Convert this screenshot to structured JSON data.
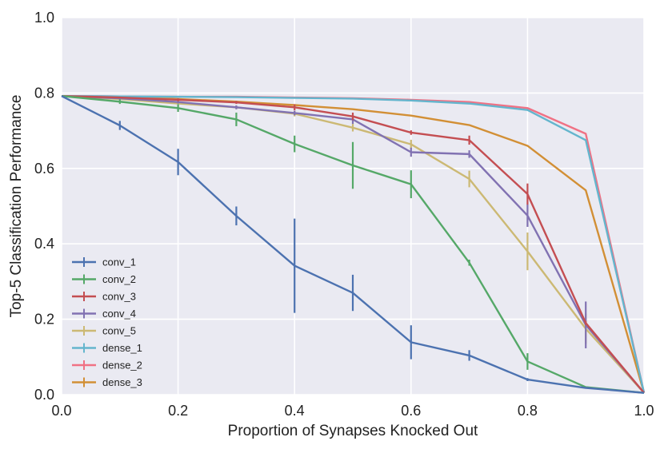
{
  "chart_data": {
    "type": "line",
    "title": "",
    "xlabel": "Proportion of Synapses Knocked Out",
    "ylabel": "Top-5 Classification Performance",
    "xlim": [
      0.0,
      1.0
    ],
    "ylim": [
      0.0,
      1.0
    ],
    "xticks": [
      "0.0",
      "0.2",
      "0.4",
      "0.6",
      "0.8",
      "1.0"
    ],
    "yticks": [
      "0.0",
      "0.2",
      "0.4",
      "0.6",
      "0.8",
      "1.0"
    ],
    "grid": true,
    "legend_position": "bottom-left",
    "x": [
      0.0,
      0.1,
      0.2,
      0.3,
      0.4,
      0.5,
      0.6,
      0.7,
      0.8,
      0.9,
      1.0
    ],
    "series": [
      {
        "name": "conv_1",
        "color": "#4c72b0",
        "values": [
          0.792,
          0.714,
          0.617,
          0.474,
          0.342,
          0.27,
          0.139,
          0.104,
          0.04,
          0.018,
          0.005
        ],
        "errors": [
          0,
          0.012,
          0.035,
          0.025,
          0.125,
          0.048,
          0.045,
          0.014,
          0.004,
          0.002,
          0
        ]
      },
      {
        "name": "conv_2",
        "color": "#55a868",
        "values": [
          0.792,
          0.777,
          0.76,
          0.73,
          0.665,
          0.608,
          0.558,
          0.35,
          0.088,
          0.02,
          0.005
        ],
        "errors": [
          0,
          0.006,
          0.01,
          0.018,
          0.022,
          0.062,
          0.037,
          0.008,
          0.022,
          0.002,
          0
        ]
      },
      {
        "name": "conv_3",
        "color": "#c44e52",
        "values": [
          0.792,
          0.788,
          0.782,
          0.775,
          0.762,
          0.738,
          0.695,
          0.675,
          0.532,
          0.19,
          0.005
        ],
        "errors": [
          0,
          0.002,
          0.004,
          0.004,
          0.008,
          0.01,
          0.006,
          0.012,
          0.028,
          0.005,
          0
        ]
      },
      {
        "name": "conv_4",
        "color": "#8172b2",
        "values": [
          0.792,
          0.786,
          0.776,
          0.762,
          0.747,
          0.73,
          0.643,
          0.638,
          0.475,
          0.185,
          0.005
        ],
        "errors": [
          0,
          0.003,
          0.004,
          0.005,
          0.006,
          0.012,
          0.012,
          0.01,
          0.03,
          0.062,
          0
        ]
      },
      {
        "name": "conv_5",
        "color": "#ccb974",
        "values": [
          0.792,
          0.784,
          0.772,
          0.762,
          0.745,
          0.708,
          0.664,
          0.572,
          0.38,
          0.175,
          0.005
        ],
        "errors": [
          0,
          0.003,
          0.004,
          0.005,
          0.007,
          0.01,
          0.012,
          0.022,
          0.05,
          0.04,
          0
        ]
      },
      {
        "name": "dense_1",
        "color": "#64b5cd",
        "values": [
          0.792,
          0.791,
          0.79,
          0.789,
          0.787,
          0.785,
          0.78,
          0.772,
          0.755,
          0.675,
          0.005
        ],
        "errors": [
          0,
          0,
          0,
          0,
          0,
          0,
          0,
          0,
          0,
          0,
          0
        ]
      },
      {
        "name": "dense_2",
        "color": "#f07184",
        "values": [
          0.792,
          0.791,
          0.79,
          0.79,
          0.788,
          0.786,
          0.782,
          0.776,
          0.76,
          0.692,
          0.005
        ],
        "errors": [
          0,
          0,
          0,
          0,
          0,
          0,
          0,
          0,
          0,
          0,
          0
        ]
      },
      {
        "name": "dense_3",
        "color": "#d28f35",
        "values": [
          0.792,
          0.789,
          0.784,
          0.777,
          0.768,
          0.757,
          0.74,
          0.715,
          0.66,
          0.542,
          0.005
        ],
        "errors": [
          0,
          0,
          0,
          0,
          0,
          0,
          0,
          0,
          0,
          0,
          0
        ]
      }
    ]
  }
}
